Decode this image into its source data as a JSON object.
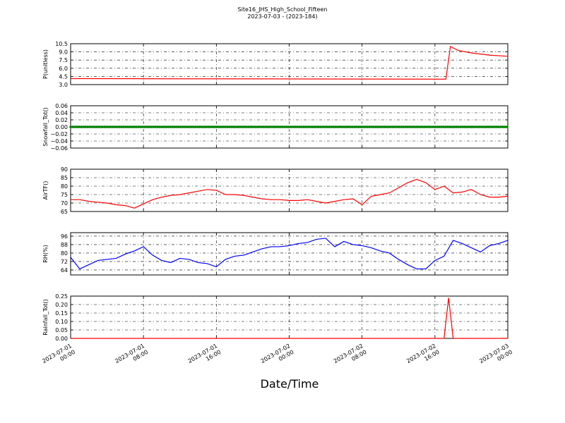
{
  "title": "Site16_JHS_High_School_Fifteen",
  "subtitle": "2023-07-03 - (2023-184)",
  "chart_data": [
    {
      "type": "line",
      "ylabel": "P(unitless)",
      "xlim": [
        "2023-07-01 00:00",
        "2023-07-03 00:00"
      ],
      "ylim": [
        3.0,
        10.5
      ],
      "yticks": [
        {
          "value": 3,
          "label": "3.0"
        },
        {
          "value": 4.5,
          "label": "4.5"
        },
        {
          "value": 6,
          "label": "6.0"
        },
        {
          "value": 7.5,
          "label": "7.5"
        },
        {
          "value": 9,
          "label": "9.0"
        },
        {
          "value": 10.5,
          "label": "10.5"
        }
      ],
      "grid": true,
      "x": [
        "2023-07-01 00:00",
        "2023-07-02 17:12",
        "2023-07-02 17:42",
        "2023-07-02 18:30",
        "2023-07-02 20:00",
        "2023-07-02 22:00",
        "2023-07-03 00:00"
      ],
      "series": [
        {
          "color": "#ff0000",
          "values": [
            4.1,
            4.0,
            10.0,
            9.3,
            8.8,
            8.4,
            8.2
          ]
        }
      ]
    },
    {
      "type": "line",
      "ylabel": "Snowfall_Tot()",
      "xlim": [
        "2023-07-01 00:00",
        "2023-07-03 00:00"
      ],
      "markers": true,
      "ylim": [
        -0.06,
        0.06
      ],
      "yticks": [
        {
          "value": -0.06,
          "label": "−0.06"
        },
        {
          "value": -0.04,
          "label": "−0.04"
        },
        {
          "value": -0.02,
          "label": "−0.02"
        },
        {
          "value": 0,
          "label": "0.00"
        },
        {
          "value": 0.02,
          "label": "0.02"
        },
        {
          "value": 0.04,
          "label": "0.04"
        },
        {
          "value": 0.06,
          "label": "0.06"
        }
      ],
      "grid": true,
      "x": [
        "2023-07-01 00:00",
        "2023-07-03 00:00"
      ],
      "series": [
        {
          "color": "#008000",
          "values": [
            0,
            0
          ]
        }
      ]
    },
    {
      "type": "line",
      "ylabel": "AirTF()",
      "xlim": [
        "2023-07-01 00:00",
        "2023-07-03 00:00"
      ],
      "ylim": [
        65,
        90
      ],
      "yticks": [
        65,
        70,
        75,
        80,
        85,
        90
      ],
      "grid": true,
      "x": [
        "2023-07-01 00:00",
        "2023-07-01 01:00",
        "2023-07-01 02:00",
        "2023-07-01 03:00",
        "2023-07-01 04:00",
        "2023-07-01 05:00",
        "2023-07-01 06:00",
        "2023-07-01 07:00",
        "2023-07-01 08:00",
        "2023-07-01 09:00",
        "2023-07-01 10:00",
        "2023-07-01 11:00",
        "2023-07-01 12:00",
        "2023-07-01 13:00",
        "2023-07-01 14:00",
        "2023-07-01 15:00",
        "2023-07-01 16:00",
        "2023-07-01 17:00",
        "2023-07-01 18:00",
        "2023-07-01 19:00",
        "2023-07-01 20:00",
        "2023-07-01 21:00",
        "2023-07-01 22:00",
        "2023-07-01 23:00",
        "2023-07-02 00:00",
        "2023-07-02 01:00",
        "2023-07-02 02:00",
        "2023-07-02 03:00",
        "2023-07-02 04:00",
        "2023-07-02 05:00",
        "2023-07-02 06:00",
        "2023-07-02 07:00",
        "2023-07-02 08:00",
        "2023-07-02 09:00",
        "2023-07-02 10:00",
        "2023-07-02 11:00",
        "2023-07-02 12:00",
        "2023-07-02 13:00",
        "2023-07-02 14:00",
        "2023-07-02 15:00",
        "2023-07-02 16:00",
        "2023-07-02 17:00",
        "2023-07-02 18:00",
        "2023-07-02 19:00",
        "2023-07-02 20:00",
        "2023-07-02 21:00",
        "2023-07-02 22:00",
        "2023-07-02 23:00",
        "2023-07-03 00:00"
      ],
      "series": [
        {
          "color": "#ff0000",
          "values": [
            72,
            72,
            71,
            70.5,
            70,
            69,
            68.5,
            67,
            69.5,
            72,
            73.5,
            74.5,
            75,
            76,
            77,
            78,
            77.5,
            75,
            75,
            74.5,
            73.5,
            72.5,
            72,
            72,
            71.5,
            71.5,
            72,
            71,
            70,
            71,
            72,
            72.5,
            69,
            74,
            75,
            76,
            79,
            82,
            84,
            82,
            78,
            80,
            76,
            76.5,
            78,
            75,
            73.5,
            73.5,
            74
          ]
        }
      ]
    },
    {
      "type": "line",
      "ylabel": "RH(%)",
      "xlim": [
        "2023-07-01 00:00",
        "2023-07-03 00:00"
      ],
      "ylim": [
        59.3,
        99.3
      ],
      "yticks": [
        64,
        72,
        80,
        88,
        96
      ],
      "grid": true,
      "x": [
        "2023-07-01 00:00",
        "2023-07-01 01:00",
        "2023-07-01 02:00",
        "2023-07-01 03:00",
        "2023-07-01 04:00",
        "2023-07-01 05:00",
        "2023-07-01 06:00",
        "2023-07-01 07:00",
        "2023-07-01 08:00",
        "2023-07-01 09:00",
        "2023-07-01 10:00",
        "2023-07-01 11:00",
        "2023-07-01 12:00",
        "2023-07-01 13:00",
        "2023-07-01 14:00",
        "2023-07-01 15:00",
        "2023-07-01 16:00",
        "2023-07-01 17:00",
        "2023-07-01 18:00",
        "2023-07-01 19:00",
        "2023-07-01 20:00",
        "2023-07-01 21:00",
        "2023-07-01 22:00",
        "2023-07-01 23:00",
        "2023-07-02 00:00",
        "2023-07-02 01:00",
        "2023-07-02 02:00",
        "2023-07-02 03:00",
        "2023-07-02 04:00",
        "2023-07-02 05:00",
        "2023-07-02 06:00",
        "2023-07-02 07:00",
        "2023-07-02 08:00",
        "2023-07-02 09:00",
        "2023-07-02 10:00",
        "2023-07-02 11:00",
        "2023-07-02 12:00",
        "2023-07-02 13:00",
        "2023-07-02 14:00",
        "2023-07-02 15:00",
        "2023-07-02 16:00",
        "2023-07-02 17:00",
        "2023-07-02 18:00",
        "2023-07-02 19:00",
        "2023-07-02 20:00",
        "2023-07-02 21:00",
        "2023-07-02 22:00",
        "2023-07-02 23:00",
        "2023-07-03 00:00"
      ],
      "series": [
        {
          "color": "#0000ff",
          "values": [
            76,
            65,
            69,
            73,
            74,
            75,
            79,
            82,
            86,
            78,
            73,
            71,
            75,
            74,
            71,
            70,
            67,
            74,
            77,
            78,
            81,
            84,
            86,
            86,
            87,
            89,
            90,
            93,
            94,
            86,
            91,
            88,
            87,
            85,
            82,
            80,
            74,
            69,
            65,
            65,
            73,
            77,
            92,
            89,
            85,
            81,
            87,
            89,
            92
          ]
        }
      ]
    },
    {
      "type": "line",
      "ylabel": "Rainfall_Tot()",
      "xlabel": "Date/Time",
      "xlim": [
        "2023-07-01 00:00",
        "2023-07-03 00:00"
      ],
      "xticks": [
        "2023-07-01 00:00",
        "2023-07-01 08:00",
        "2023-07-01 16:00",
        "2023-07-02 00:00",
        "2023-07-02 08:00",
        "2023-07-02 16:00",
        "2023-07-03 00:00"
      ],
      "ylim": [
        0,
        0.25
      ],
      "yticks": [
        {
          "value": 0,
          "label": "0.00"
        },
        {
          "value": 0.05,
          "label": "0.05"
        },
        {
          "value": 0.1,
          "label": "0.10"
        },
        {
          "value": 0.15,
          "label": "0.15"
        },
        {
          "value": 0.2,
          "label": "0.20"
        },
        {
          "value": 0.25,
          "label": "0.25"
        }
      ],
      "grid": true,
      "x": [
        "2023-07-01 00:00",
        "2023-07-02 17:00",
        "2023-07-02 17:30",
        "2023-07-02 18:00",
        "2023-07-03 00:00"
      ],
      "series": [
        {
          "color": "#ff0000",
          "values": [
            0,
            0,
            0.24,
            0,
            0
          ]
        }
      ]
    }
  ]
}
